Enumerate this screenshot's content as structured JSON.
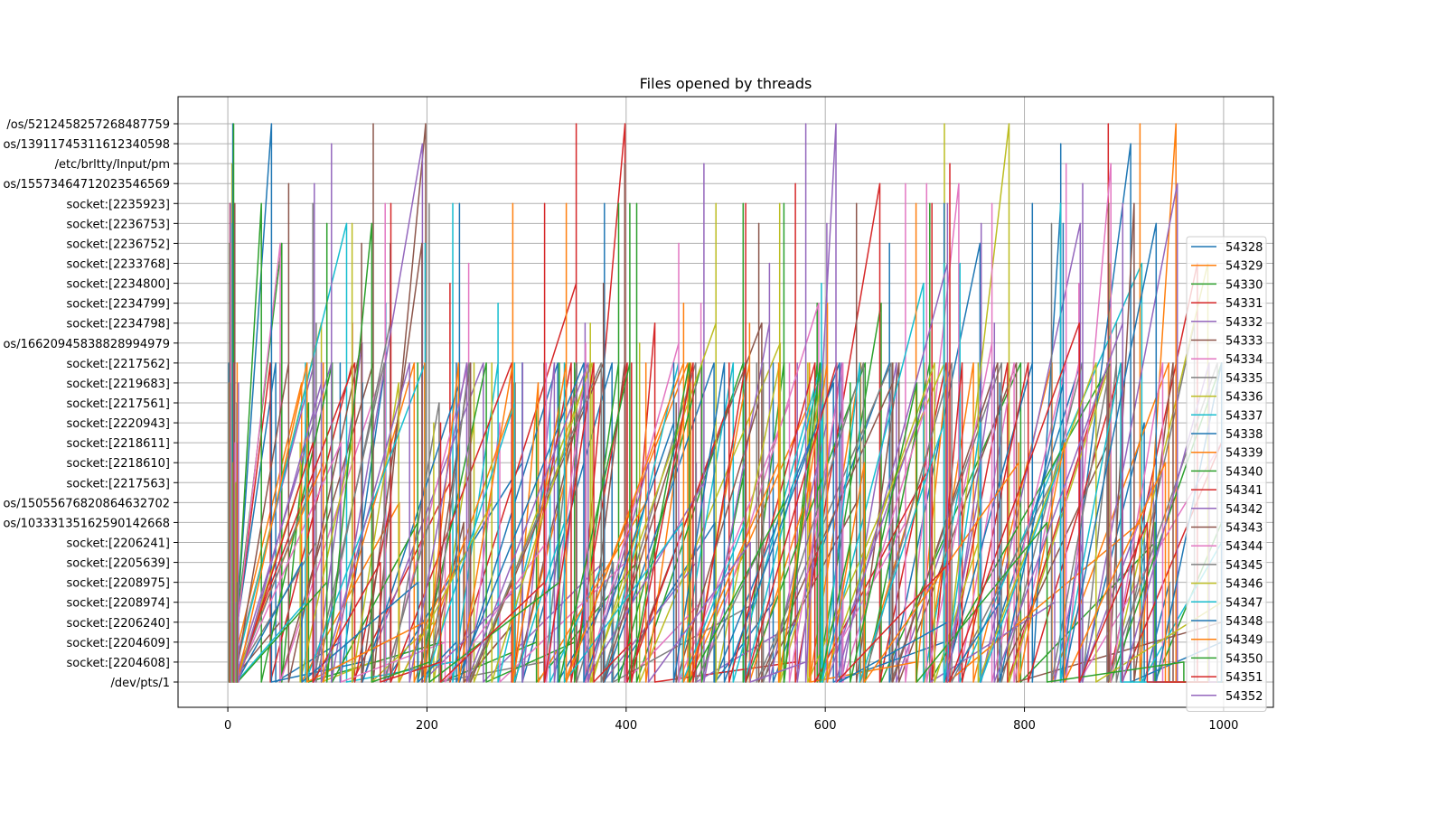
{
  "chart_data": {
    "type": "line",
    "title": "Files opened by threads",
    "xlabel": "",
    "ylabel": "",
    "xlim": [
      -50,
      1050
    ],
    "xticks": [
      0,
      200,
      400,
      600,
      800,
      1000
    ],
    "grid": true,
    "legend_position": "right",
    "y_categories": [
      "/dev/pts/1",
      "socket:[2204608]",
      "socket:[2204609]",
      "socket:[2206240]",
      "socket:[2208974]",
      "socket:[2208975]",
      "socket:[2205639]",
      "socket:[2206241]",
      "os/10333135162590142668",
      "os/15055676820864632702",
      "socket:[2217563]",
      "socket:[2218610]",
      "socket:[2218611]",
      "socket:[2220943]",
      "socket:[2217561]",
      "socket:[2219683]",
      "socket:[2217562]",
      "os/16620945838828994979",
      "socket:[2234798]",
      "socket:[2234799]",
      "socket:[2234800]",
      "socket:[2233768]",
      "socket:[2236752]",
      "socket:[2236753]",
      "socket:[2235923]",
      "os/15573464712023546569",
      "/etc/brltty/Input/pm",
      "os/13911745311612340598",
      "/os/5212458257268487759"
    ],
    "series": [
      {
        "name": "54328",
        "color": "#1f77b4"
      },
      {
        "name": "54329",
        "color": "#ff7f0e"
      },
      {
        "name": "54330",
        "color": "#2ca02c"
      },
      {
        "name": "54331",
        "color": "#d62728"
      },
      {
        "name": "54332",
        "color": "#9467bd"
      },
      {
        "name": "54333",
        "color": "#8c564b"
      },
      {
        "name": "54334",
        "color": "#e377c2"
      },
      {
        "name": "54335",
        "color": "#7f7f7f"
      },
      {
        "name": "54336",
        "color": "#bcbd22"
      },
      {
        "name": "54337",
        "color": "#17becf"
      },
      {
        "name": "54338",
        "color": "#1f77b4"
      },
      {
        "name": "54339",
        "color": "#ff7f0e"
      },
      {
        "name": "54340",
        "color": "#2ca02c"
      },
      {
        "name": "54341",
        "color": "#d62728"
      },
      {
        "name": "54342",
        "color": "#9467bd"
      },
      {
        "name": "54343",
        "color": "#8c564b"
      },
      {
        "name": "54344",
        "color": "#e377c2"
      },
      {
        "name": "54345",
        "color": "#7f7f7f"
      },
      {
        "name": "54346",
        "color": "#bcbd22"
      },
      {
        "name": "54347",
        "color": "#17becf"
      },
      {
        "name": "54348",
        "color": "#1f77b4"
      },
      {
        "name": "54349",
        "color": "#ff7f0e"
      },
      {
        "name": "54350",
        "color": "#2ca02c"
      },
      {
        "name": "54351",
        "color": "#d62728"
      },
      {
        "name": "54352",
        "color": "#9467bd"
      }
    ]
  }
}
